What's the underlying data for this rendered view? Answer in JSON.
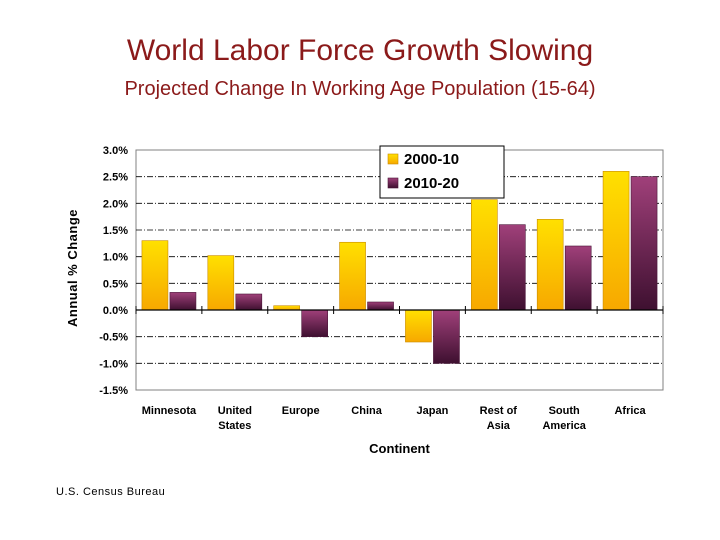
{
  "source": "U.S. Census Bureau",
  "colors": {
    "series1_top": "#ffe000",
    "series1_bottom": "#f7a800",
    "series2_top": "#a0407a",
    "series2_bottom": "#3e1030",
    "title": "#8b1a1a"
  },
  "chart_data": {
    "type": "bar",
    "title": "World Labor Force Growth Slowing",
    "subtitle": "Projected Change In Working Age Population (15-64)",
    "xlabel": "Continent",
    "ylabel": "Annual % Change",
    "ylim": [
      -1.5,
      3.0
    ],
    "yticks": [
      3.0,
      2.5,
      2.0,
      1.5,
      1.0,
      0.5,
      0.0,
      -0.5,
      -1.0,
      -1.5
    ],
    "ytick_labels": [
      "3.0%",
      "2.5%",
      "2.0%",
      "1.5%",
      "1.0%",
      "0.5%",
      "0.0%",
      "-0.5%",
      "-1.0%",
      "-1.5%"
    ],
    "grid": true,
    "legend_position": "top-right",
    "categories": [
      [
        "Minnesota"
      ],
      [
        "United",
        "States"
      ],
      [
        "Europe"
      ],
      [
        "China"
      ],
      [
        "Japan"
      ],
      [
        "Rest of",
        "Asia"
      ],
      [
        "South",
        "America"
      ],
      [
        "Africa"
      ]
    ],
    "series": [
      {
        "name": "2000-10",
        "values": [
          1.3,
          1.02,
          0.08,
          1.27,
          -0.6,
          2.07,
          1.7,
          2.6
        ]
      },
      {
        "name": "2010-20",
        "values": [
          0.33,
          0.3,
          -0.5,
          0.15,
          -1.0,
          1.6,
          1.2,
          2.5
        ]
      }
    ]
  }
}
